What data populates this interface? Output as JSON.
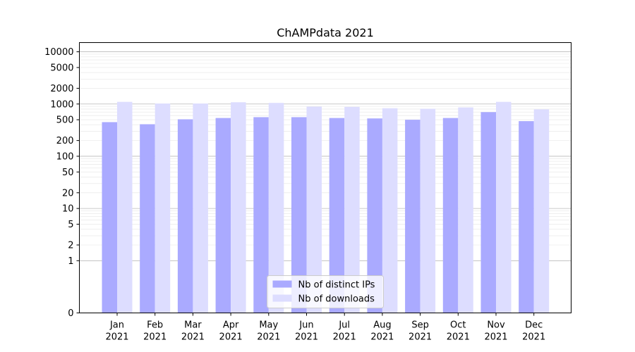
{
  "chart_data": {
    "type": "bar",
    "title": "ChAMPdata 2021",
    "xlabel": "",
    "ylabel": "",
    "y_scale": "symlog",
    "ylim": [
      0,
      15000
    ],
    "yticks": [
      0,
      1,
      2,
      5,
      10,
      20,
      50,
      100,
      200,
      500,
      1000,
      2000,
      5000,
      10000
    ],
    "categories": [
      [
        "Jan",
        "2021"
      ],
      [
        "Feb",
        "2021"
      ],
      [
        "Mar",
        "2021"
      ],
      [
        "Apr",
        "2021"
      ],
      [
        "May",
        "2021"
      ],
      [
        "Jun",
        "2021"
      ],
      [
        "Jul",
        "2021"
      ],
      [
        "Aug",
        "2021"
      ],
      [
        "Sep",
        "2021"
      ],
      [
        "Oct",
        "2021"
      ],
      [
        "Nov",
        "2021"
      ],
      [
        "Dec",
        "2021"
      ]
    ],
    "series": [
      {
        "name": "Nb of distinct IPs",
        "color": "#aaaaff",
        "values": [
          450,
          410,
          510,
          540,
          560,
          560,
          540,
          530,
          500,
          540,
          700,
          470
        ]
      },
      {
        "name": "Nb of downloads",
        "color": "#ddddff",
        "values": [
          1100,
          1020,
          1020,
          1080,
          1050,
          890,
          880,
          830,
          810,
          860,
          1100,
          790
        ]
      }
    ],
    "legend_position": "lower-center",
    "grid": true
  }
}
